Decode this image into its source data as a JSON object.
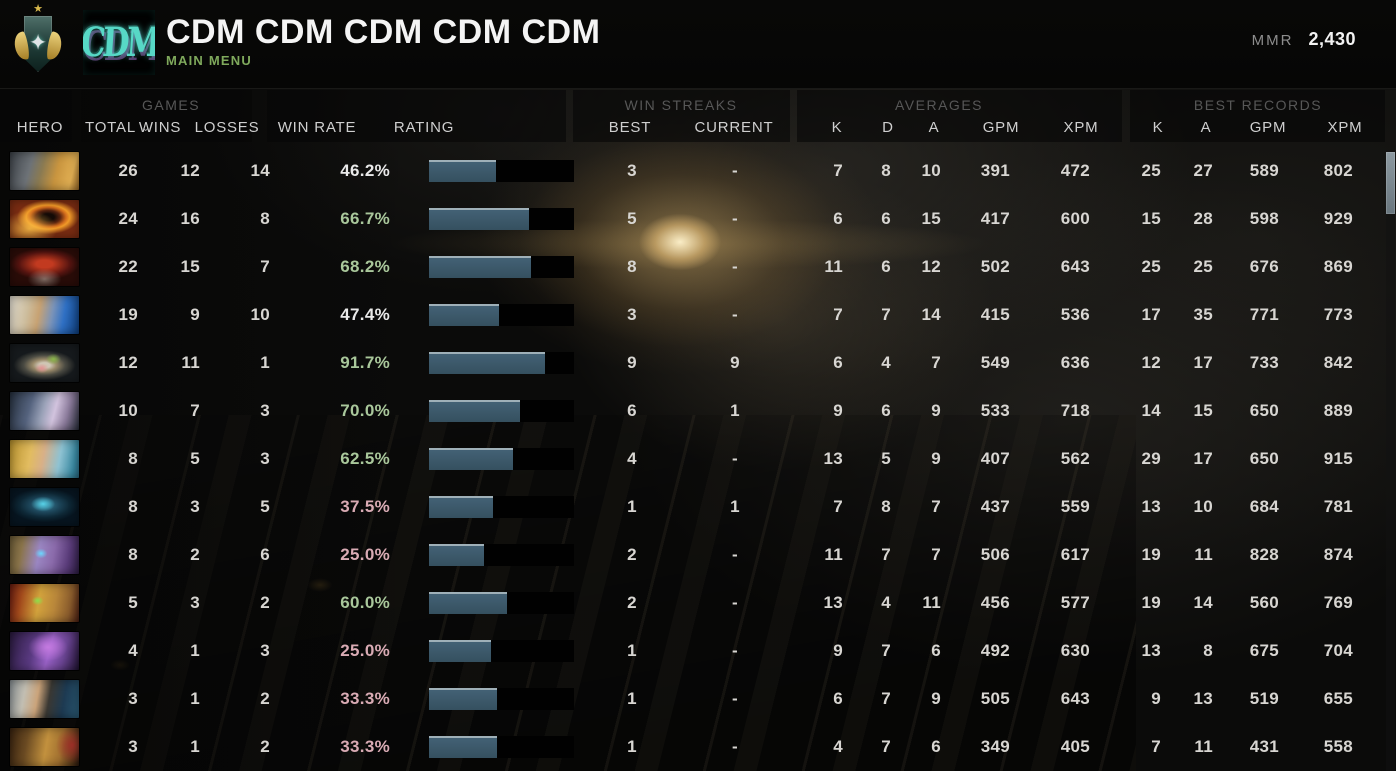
{
  "header": {
    "title": "CDM CDM CDM CDM CDM",
    "subtitle": "MAIN MENU",
    "logo_text": "CDM",
    "mmr_label": "MMR",
    "mmr_value": "2,430"
  },
  "columns": {
    "hero": "HERO",
    "sort_caret": "⌄",
    "games": {
      "group": "GAMES",
      "total": "TOTAL",
      "wins": "WINS",
      "losses": "LOSSES"
    },
    "rate": {
      "win_rate": "WIN RATE",
      "rating": "RATING"
    },
    "streaks": {
      "group": "WIN STREAKS",
      "best": "BEST",
      "current": "CURRENT"
    },
    "averages": {
      "group": "AVERAGES",
      "k": "K",
      "d": "D",
      "a": "A",
      "gpm": "GPM",
      "xpm": "XPM"
    },
    "records": {
      "group": "BEST RECORDS",
      "k": "K",
      "a": "A",
      "gpm": "GPM",
      "xpm": "XPM"
    }
  },
  "colors": {
    "win_rate_positive": "#a9c79b",
    "win_rate_neutral": "#e9e9e9",
    "win_rate_negative": "#d9abb4",
    "rating_bar_fill": "#436175",
    "rating_bar_highlight": "#9fb0b8",
    "subtitle_green": "#7fa95c"
  },
  "table": {
    "rows": [
      {
        "hero": "alchemist",
        "total": "26",
        "wins": "12",
        "losses": "14",
        "win_rate": "46.2%",
        "rating_pct": 46,
        "best": "3",
        "current": "-",
        "k": "7",
        "d": "8",
        "a": "10",
        "gpm": "391",
        "xpm": "472",
        "rec_k": "25",
        "rec_a": "27",
        "rec_gpm": "589",
        "rec_xpm": "802"
      },
      {
        "hero": "phoenix",
        "total": "24",
        "wins": "16",
        "losses": "8",
        "win_rate": "66.7%",
        "rating_pct": 69,
        "best": "5",
        "current": "-",
        "k": "6",
        "d": "6",
        "a": "15",
        "gpm": "417",
        "xpm": "600",
        "rec_k": "15",
        "rec_a": "28",
        "rec_gpm": "598",
        "rec_xpm": "929"
      },
      {
        "hero": "bloodseeker",
        "total": "22",
        "wins": "15",
        "losses": "7",
        "win_rate": "68.2%",
        "rating_pct": 70,
        "best": "8",
        "current": "-",
        "k": "11",
        "d": "6",
        "a": "12",
        "gpm": "502",
        "xpm": "643",
        "rec_k": "25",
        "rec_a": "25",
        "rec_gpm": "676",
        "rec_xpm": "869"
      },
      {
        "hero": "zeus",
        "total": "19",
        "wins": "9",
        "losses": "10",
        "win_rate": "47.4%",
        "rating_pct": 48,
        "best": "3",
        "current": "-",
        "k": "7",
        "d": "7",
        "a": "14",
        "gpm": "415",
        "xpm": "536",
        "rec_k": "17",
        "rec_a": "35",
        "rec_gpm": "771",
        "rec_xpm": "773"
      },
      {
        "hero": "sniper",
        "total": "12",
        "wins": "11",
        "losses": "1",
        "win_rate": "91.7%",
        "rating_pct": 80,
        "best": "9",
        "current": "9",
        "k": "6",
        "d": "4",
        "a": "7",
        "gpm": "549",
        "xpm": "636",
        "rec_k": "12",
        "rec_a": "17",
        "rec_gpm": "733",
        "rec_xpm": "842"
      },
      {
        "hero": "drow-ranger",
        "total": "10",
        "wins": "7",
        "losses": "3",
        "win_rate": "70.0%",
        "rating_pct": 63,
        "best": "6",
        "current": "1",
        "k": "9",
        "d": "6",
        "a": "9",
        "gpm": "533",
        "xpm": "718",
        "rec_k": "14",
        "rec_a": "15",
        "rec_gpm": "650",
        "rec_xpm": "889"
      },
      {
        "hero": "skywrath-mage",
        "total": "8",
        "wins": "5",
        "losses": "3",
        "win_rate": "62.5%",
        "rating_pct": 58,
        "best": "4",
        "current": "-",
        "k": "13",
        "d": "5",
        "a": "9",
        "gpm": "407",
        "xpm": "562",
        "rec_k": "29",
        "rec_a": "17",
        "rec_gpm": "650",
        "rec_xpm": "915"
      },
      {
        "hero": "phantom-assassin",
        "total": "8",
        "wins": "3",
        "losses": "5",
        "win_rate": "37.5%",
        "rating_pct": 44,
        "best": "1",
        "current": "1",
        "k": "7",
        "d": "8",
        "a": "7",
        "gpm": "437",
        "xpm": "559",
        "rec_k": "13",
        "rec_a": "10",
        "rec_gpm": "684",
        "rec_xpm": "781"
      },
      {
        "hero": "tinker",
        "total": "8",
        "wins": "2",
        "losses": "6",
        "win_rate": "25.0%",
        "rating_pct": 38,
        "best": "2",
        "current": "-",
        "k": "11",
        "d": "7",
        "a": "7",
        "gpm": "506",
        "xpm": "617",
        "rec_k": "19",
        "rec_a": "11",
        "rec_gpm": "828",
        "rec_xpm": "874"
      },
      {
        "hero": "bounty-hunter",
        "total": "5",
        "wins": "3",
        "losses": "2",
        "win_rate": "60.0%",
        "rating_pct": 54,
        "best": "2",
        "current": "-",
        "k": "13",
        "d": "4",
        "a": "11",
        "gpm": "456",
        "xpm": "577",
        "rec_k": "19",
        "rec_a": "14",
        "rec_gpm": "560",
        "rec_xpm": "769"
      },
      {
        "hero": "faceless-void",
        "total": "4",
        "wins": "1",
        "losses": "3",
        "win_rate": "25.0%",
        "rating_pct": 43,
        "best": "1",
        "current": "-",
        "k": "9",
        "d": "7",
        "a": "6",
        "gpm": "492",
        "xpm": "630",
        "rec_k": "13",
        "rec_a": "8",
        "rec_gpm": "675",
        "rec_xpm": "704"
      },
      {
        "hero": "kunkka",
        "total": "3",
        "wins": "1",
        "losses": "2",
        "win_rate": "33.3%",
        "rating_pct": 47,
        "best": "1",
        "current": "-",
        "k": "6",
        "d": "7",
        "a": "9",
        "gpm": "505",
        "xpm": "643",
        "rec_k": "9",
        "rec_a": "13",
        "rec_gpm": "519",
        "rec_xpm": "655"
      },
      {
        "hero": "earthshaker",
        "total": "3",
        "wins": "1",
        "losses": "2",
        "win_rate": "33.3%",
        "rating_pct": 47,
        "best": "1",
        "current": "-",
        "k": "4",
        "d": "7",
        "a": "6",
        "gpm": "349",
        "xpm": "405",
        "rec_k": "7",
        "rec_a": "11",
        "rec_gpm": "431",
        "rec_xpm": "558"
      }
    ]
  }
}
